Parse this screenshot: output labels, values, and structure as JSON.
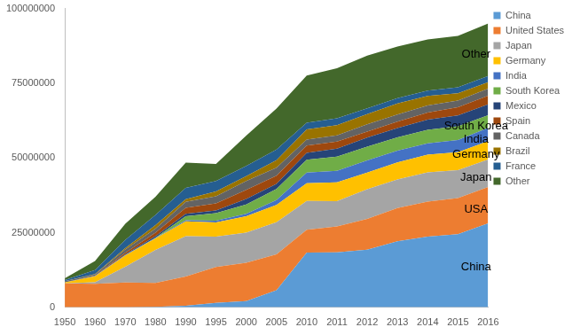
{
  "chart_data": {
    "type": "area",
    "stacked": true,
    "grid": false,
    "legend": "right",
    "categories": [
      1950,
      1960,
      1970,
      1980,
      1990,
      1995,
      2000,
      2005,
      2010,
      2011,
      2012,
      2013,
      2014,
      2015,
      2016
    ],
    "ylim": [
      0,
      100000000
    ],
    "yticks": [
      0,
      25000000,
      50000000,
      75000000,
      100000000
    ],
    "series": [
      {
        "name": "China",
        "color": "#5b9bd5",
        "values": [
          0,
          0,
          0,
          200000,
          500000,
          1500000,
          2100000,
          5700000,
          18300000,
          18400000,
          19300000,
          22100000,
          23700000,
          24500000,
          28100000
        ]
      },
      {
        "name": "United States",
        "color": "#ed7d31",
        "values": [
          8000000,
          7900000,
          8300000,
          8000000,
          9800000,
          12000000,
          12800000,
          12000000,
          7700000,
          8700000,
          10300000,
          11100000,
          11700000,
          12100000,
          12200000
        ]
      },
      {
        "name": "Japan",
        "color": "#a5a5a5",
        "values": [
          30000,
          480000,
          5300000,
          11000000,
          13500000,
          10200000,
          10100000,
          10800000,
          9600000,
          8400000,
          9900000,
          9600000,
          9800000,
          9300000,
          9200000
        ]
      },
      {
        "name": "Germany",
        "color": "#ffc000",
        "values": [
          300000,
          2050000,
          3800000,
          3900000,
          5000000,
          4700000,
          5500000,
          5800000,
          5900000,
          6300000,
          5600000,
          5700000,
          5900000,
          6000000,
          6100000
        ]
      },
      {
        "name": "India",
        "color": "#4472c4",
        "values": [
          10000,
          50000,
          80000,
          100000,
          360000,
          600000,
          800000,
          1600000,
          3600000,
          3900000,
          4100000,
          3900000,
          3800000,
          4100000,
          4500000
        ]
      },
      {
        "name": "South Korea",
        "color": "#70ad47",
        "values": [
          0,
          0,
          30000,
          120000,
          1300000,
          2500000,
          3100000,
          3700000,
          4300000,
          4700000,
          4600000,
          4500000,
          4500000,
          4600000,
          4200000
        ]
      },
      {
        "name": "Mexico",
        "color": "#264478",
        "values": [
          20000,
          50000,
          190000,
          490000,
          820000,
          930000,
          1900000,
          1700000,
          2300000,
          2700000,
          3000000,
          3100000,
          3400000,
          3600000,
          3600000
        ]
      },
      {
        "name": "Spain",
        "color": "#9e480e",
        "values": [
          10000,
          60000,
          540000,
          1180000,
          2050000,
          2330000,
          3000000,
          2750000,
          2400000,
          2350000,
          1980000,
          2160000,
          2400000,
          2730000,
          2890000
        ]
      },
      {
        "name": "Canada",
        "color": "#636363",
        "values": [
          390000,
          400000,
          1160000,
          1370000,
          1950000,
          2400000,
          2960000,
          2690000,
          2070000,
          2130000,
          2460000,
          2380000,
          2390000,
          2280000,
          2370000
        ]
      },
      {
        "name": "Brazil",
        "color": "#997300",
        "values": [
          0,
          130000,
          420000,
          1170000,
          910000,
          1630000,
          1680000,
          2530000,
          3380000,
          3410000,
          3400000,
          3710000,
          3150000,
          2430000,
          2160000
        ]
      },
      {
        "name": "France",
        "color": "#255e91",
        "values": [
          360000,
          1370000,
          2750000,
          3380000,
          3770000,
          3470000,
          3350000,
          3550000,
          2230000,
          2240000,
          1970000,
          1740000,
          1820000,
          1970000,
          2080000
        ]
      },
      {
        "name": "Other",
        "color": "#43682b",
        "values": [
          600000,
          3000000,
          5400000,
          6100000,
          8500000,
          5700000,
          10200000,
          13700000,
          15800000,
          16800000,
          17600000,
          17300000,
          17100000,
          17200000,
          17600000
        ]
      }
    ],
    "annotations": [
      {
        "text": "China",
        "series": "China"
      },
      {
        "text": "USA",
        "series": "United States"
      },
      {
        "text": "Japan",
        "series": "Japan"
      },
      {
        "text": "Germany",
        "series": "Germany"
      },
      {
        "text": "India",
        "series": "India"
      },
      {
        "text": "South Korea",
        "series": "South Korea"
      },
      {
        "text": "Other",
        "series": "Other"
      }
    ]
  }
}
